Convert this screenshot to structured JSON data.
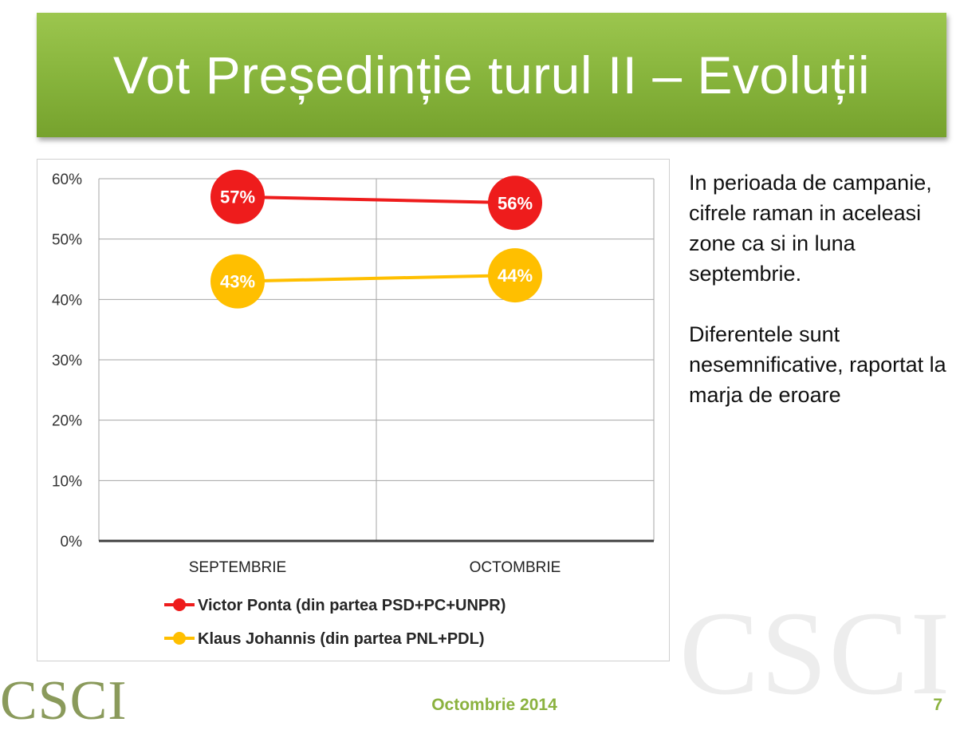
{
  "slide": {
    "title": "Vot Președinție turul II – Evoluții",
    "side_text": [
      "In perioada de campanie, cifrele raman in aceleasi zone ca si in luna septembrie.",
      "Diferentele sunt nesemnificative, raportat la marja de eroare"
    ],
    "footer_date": "Octombrie 2014",
    "page_number": "7",
    "logo_text": "CSCI",
    "watermark_text": "CSCI"
  },
  "colors": {
    "banner": "#8ab53f",
    "ponta": "#ee1c1c",
    "johannis": "#ffbf00",
    "footer": "#8bb23f"
  },
  "chart_data": {
    "type": "line",
    "title": "",
    "xlabel": "",
    "ylabel": "",
    "categories": [
      "SEPTEMBRIE",
      "OCTOMBRIE"
    ],
    "ylim": [
      0,
      60
    ],
    "yticks": [
      0,
      10,
      20,
      30,
      40,
      50,
      60
    ],
    "ytick_labels": [
      "0%",
      "10%",
      "20%",
      "30%",
      "40%",
      "50%",
      "60%"
    ],
    "grid": true,
    "legend_position": "bottom",
    "series": [
      {
        "name": "Victor Ponta (din partea PSD+PC+UNPR)",
        "values": [
          57,
          56
        ],
        "labels": [
          "57%",
          "56%"
        ],
        "color": "#ee1c1c"
      },
      {
        "name": "Klaus Johannis (din partea PNL+PDL)",
        "values": [
          43,
          44
        ],
        "labels": [
          "43%",
          "44%"
        ],
        "color": "#ffbf00"
      }
    ]
  }
}
